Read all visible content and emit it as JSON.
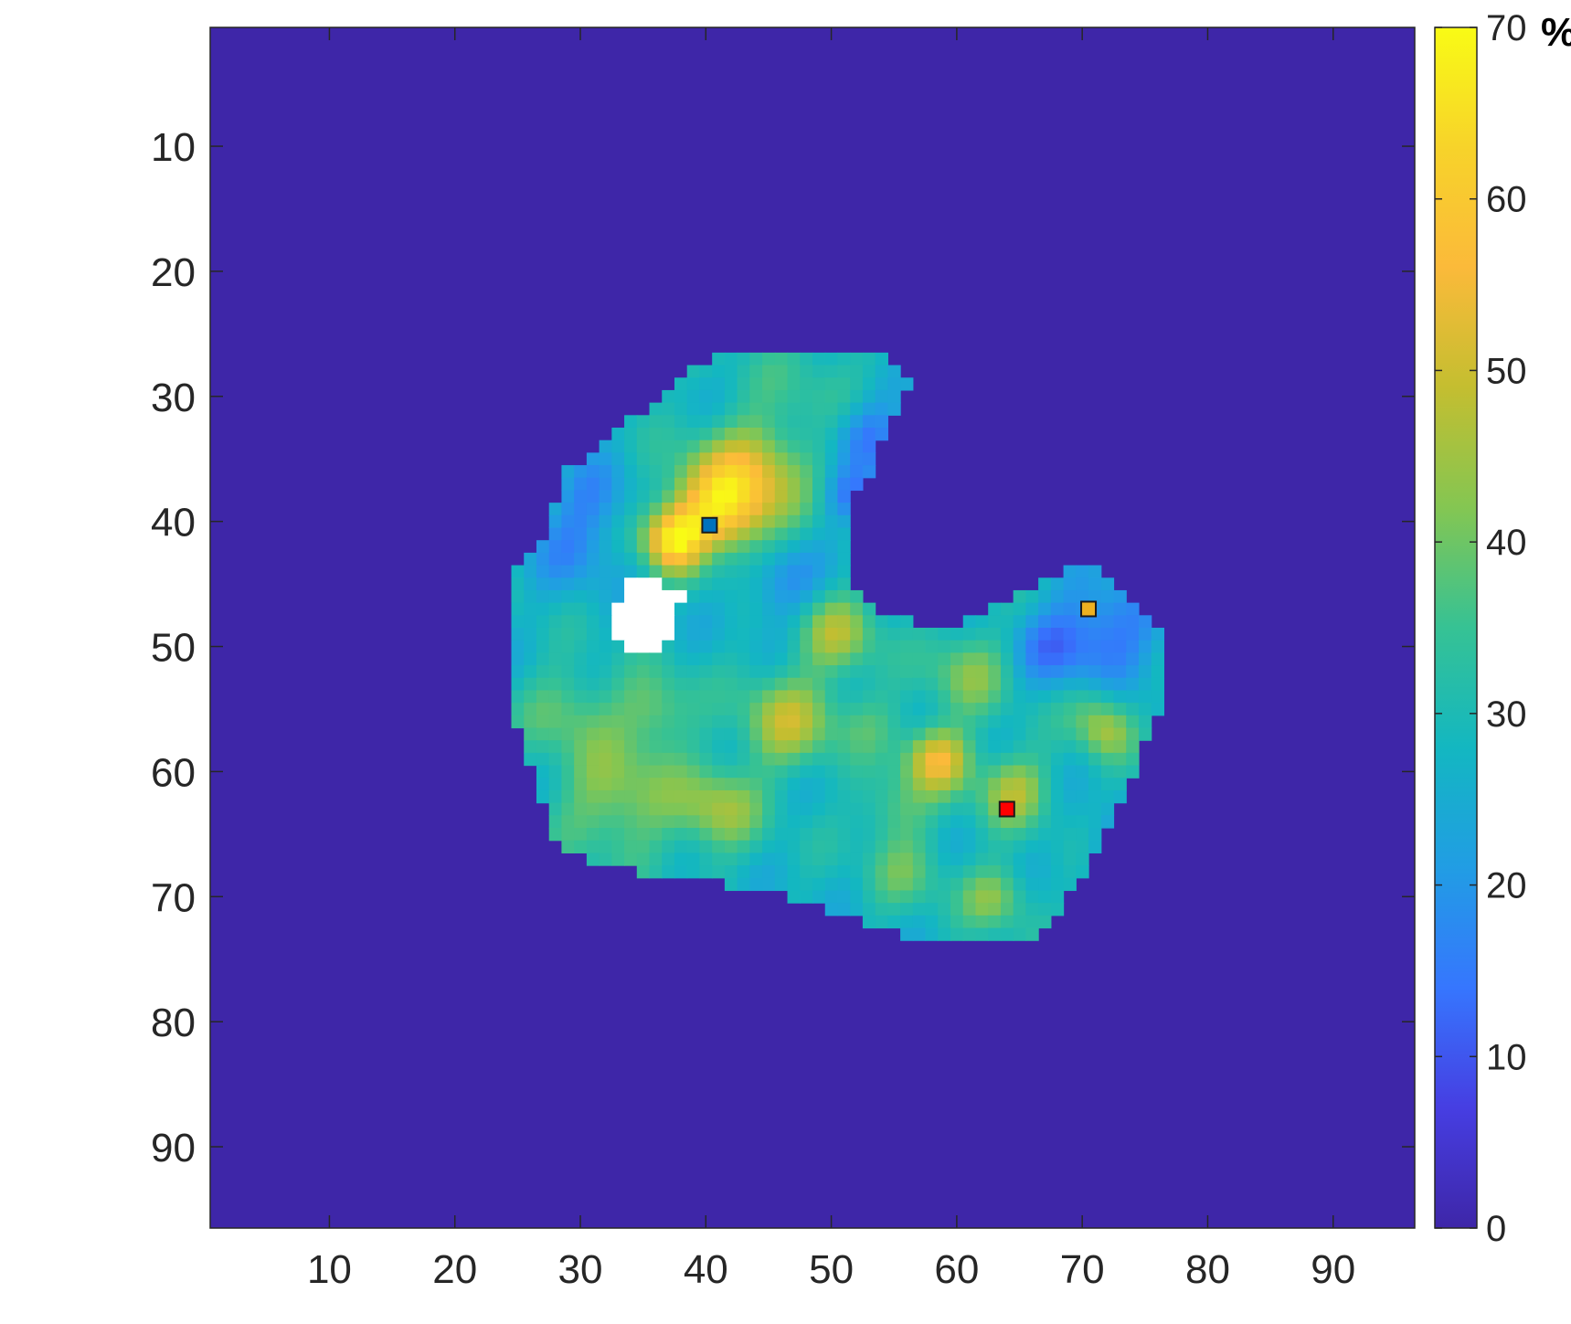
{
  "chart_data": {
    "type": "heatmap",
    "title": "",
    "xlabel": "",
    "ylabel": "",
    "x_range": [
      0.5,
      96.5
    ],
    "y_range": [
      0.5,
      96.5
    ],
    "y_reversed": true,
    "x_ticks": [
      "10",
      "20",
      "30",
      "40",
      "50",
      "60",
      "70",
      "80",
      "90"
    ],
    "y_ticks": [
      "10",
      "20",
      "30",
      "40",
      "50",
      "60",
      "70",
      "80",
      "90"
    ],
    "background_value": 0,
    "colorbar": {
      "colormap": "parula",
      "range": [
        0,
        70
      ],
      "ticks": [
        "0",
        "10",
        "20",
        "30",
        "40",
        "50",
        "60",
        "70"
      ],
      "unit": "%"
    },
    "region_outline": [
      [
        42,
        26.5
      ],
      [
        50,
        26
      ],
      [
        55,
        27
      ],
      [
        56.5,
        28.5
      ],
      [
        55,
        31.5
      ],
      [
        54,
        33.5
      ],
      [
        53,
        36.5
      ],
      [
        51.5,
        38.5
      ],
      [
        51.5,
        44.5
      ],
      [
        54,
        47
      ],
      [
        57,
        48
      ],
      [
        59,
        49
      ],
      [
        62,
        47.5
      ],
      [
        65,
        46
      ],
      [
        67,
        44.5
      ],
      [
        70,
        43.5
      ],
      [
        72,
        44
      ],
      [
        74,
        46
      ],
      [
        76,
        48
      ],
      [
        76.5,
        51
      ],
      [
        76.5,
        55
      ],
      [
        75,
        58
      ],
      [
        74,
        61
      ],
      [
        72,
        65
      ],
      [
        70.5,
        68
      ],
      [
        69,
        70
      ],
      [
        66.5,
        73
      ],
      [
        64,
        74
      ],
      [
        58,
        74
      ],
      [
        55,
        72.5
      ],
      [
        51,
        71.5
      ],
      [
        47,
        70
      ],
      [
        42,
        69
      ],
      [
        35,
        68
      ],
      [
        31,
        67
      ],
      [
        28,
        65.5
      ],
      [
        27,
        62
      ],
      [
        26,
        59
      ],
      [
        25,
        56
      ],
      [
        24.5,
        52
      ],
      [
        24.5,
        47
      ],
      [
        25,
        44
      ],
      [
        27,
        42
      ],
      [
        28,
        39
      ],
      [
        29,
        36
      ],
      [
        32,
        34
      ],
      [
        34,
        32
      ],
      [
        36,
        30.5
      ],
      [
        38,
        28.5
      ],
      [
        40,
        27.5
      ]
    ],
    "holes": [
      [
        [
          33.5,
          45
        ],
        [
          36.5,
          45
        ],
        [
          38,
          45.5
        ],
        [
          38,
          49.5
        ],
        [
          36,
          50.5
        ],
        [
          33.5,
          50.5
        ],
        [
          32.5,
          49
        ],
        [
          33,
          47
        ]
      ],
      [
        [
          38,
          46
        ],
        [
          39,
          45.5
        ],
        [
          39,
          47
        ],
        [
          38,
          47
        ]
      ]
    ],
    "base_value": 28,
    "hotspots": [
      {
        "x": 41,
        "y": 39,
        "value": 60,
        "spread": 2.8
      },
      {
        "x": 37.5,
        "y": 41.5,
        "value": 62,
        "spread": 1.7
      },
      {
        "x": 44,
        "y": 36,
        "value": 46,
        "spread": 3.0
      },
      {
        "x": 48,
        "y": 28.5,
        "value": 33,
        "spread": 3.5
      },
      {
        "x": 58.5,
        "y": 59,
        "value": 54,
        "spread": 1.8
      },
      {
        "x": 46.5,
        "y": 56,
        "value": 47,
        "spread": 2.6
      },
      {
        "x": 50.5,
        "y": 49,
        "value": 45,
        "spread": 2.2
      },
      {
        "x": 64.5,
        "y": 61.5,
        "value": 46,
        "spread": 2.0
      },
      {
        "x": 61,
        "y": 52,
        "value": 41,
        "spread": 2.4
      },
      {
        "x": 33,
        "y": 62,
        "value": 43,
        "spread": 3.4
      },
      {
        "x": 41,
        "y": 63,
        "value": 44,
        "spread": 2.4
      },
      {
        "x": 29,
        "y": 55,
        "value": 38,
        "spread": 2.5
      },
      {
        "x": 36,
        "y": 55,
        "value": 40,
        "spread": 2.2
      },
      {
        "x": 55,
        "y": 63,
        "value": 38,
        "spread": 2.0
      },
      {
        "x": 56,
        "y": 68,
        "value": 37,
        "spread": 2.2
      },
      {
        "x": 63,
        "y": 70,
        "value": 42,
        "spread": 1.8
      },
      {
        "x": 71,
        "y": 55,
        "value": 38,
        "spread": 1.8
      },
      {
        "x": 72,
        "y": 57,
        "value": 40,
        "spread": 1.5
      },
      {
        "x": 53,
        "y": 56,
        "value": 35,
        "spread": 2.0
      }
    ],
    "coldspots": [
      {
        "x": 72,
        "y": 49,
        "value": 14,
        "spread": 3.0
      },
      {
        "x": 67.5,
        "y": 50,
        "value": 18,
        "spread": 2.2
      },
      {
        "x": 29.5,
        "y": 42,
        "value": 19,
        "spread": 2.5
      },
      {
        "x": 31,
        "y": 38,
        "value": 20,
        "spread": 2.2
      },
      {
        "x": 53,
        "y": 33,
        "value": 15,
        "spread": 2.0
      },
      {
        "x": 51.5,
        "y": 38,
        "value": 16,
        "spread": 1.5
      },
      {
        "x": 46,
        "y": 45,
        "value": 18,
        "spread": 2.2
      },
      {
        "x": 40,
        "y": 42.5,
        "value": 21,
        "spread": 1.5
      },
      {
        "x": 73,
        "y": 66,
        "value": 19,
        "spread": 2.0
      }
    ],
    "markers": [
      {
        "x": 40.3,
        "y": 40.3,
        "color": "#0072BD"
      },
      {
        "x": 70.5,
        "y": 47,
        "color": "#EDB120"
      },
      {
        "x": 64,
        "y": 63,
        "color": "#FF0000"
      }
    ]
  }
}
